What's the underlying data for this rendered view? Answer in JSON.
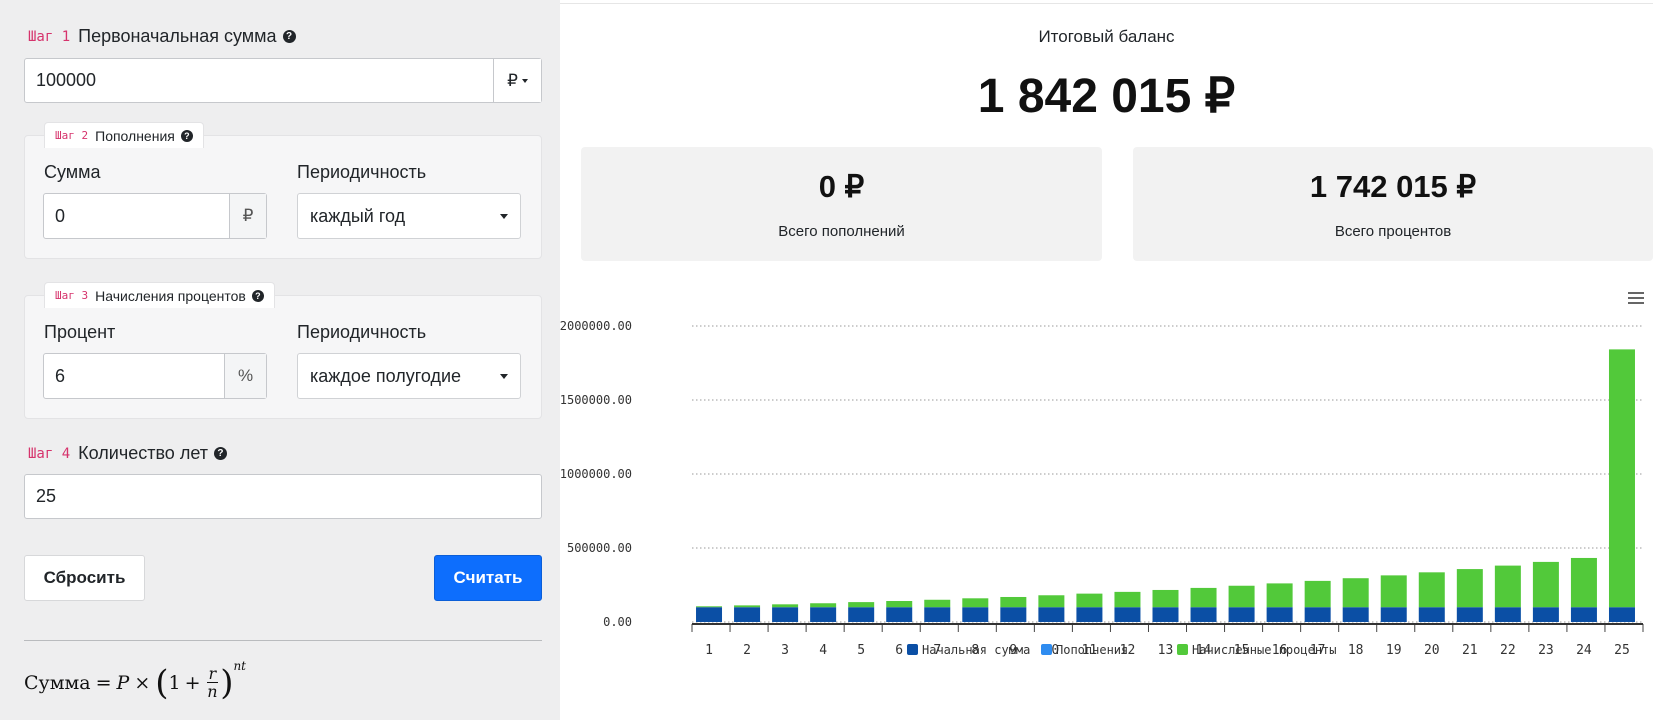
{
  "form": {
    "step1": {
      "tag": "Шаг 1",
      "label": "Первоначальная сумма",
      "value": "100000",
      "currency": "₽"
    },
    "step2": {
      "tag": "Шаг 2",
      "label": "Пополнения",
      "amount_label": "Сумма",
      "amount_value": "0",
      "amount_unit": "₽",
      "period_label": "Периодичность",
      "period_value": "каждый год"
    },
    "step3": {
      "tag": "Шаг 3",
      "label": "Начисления процентов",
      "rate_label": "Процент",
      "rate_value": "6",
      "rate_unit": "%",
      "period_label": "Периодичность",
      "period_value": "каждое полугодие"
    },
    "step4": {
      "tag": "Шаг 4",
      "label": "Количество лет",
      "value": "25"
    },
    "reset_label": "Сбросить",
    "calc_label": "Считать",
    "formula": {
      "lhs": "Сумма",
      "p": "P",
      "one": "1",
      "r": "r",
      "n": "n",
      "exp": "nt"
    }
  },
  "summary": {
    "title": "Итоговый баланс",
    "final_balance": "1 842 015 ₽",
    "deposits_value": "0 ₽",
    "deposits_label": "Всего пополнений",
    "interest_value": "1 742 015 ₽",
    "interest_label": "Всего процентов"
  },
  "colors": {
    "initial": "#0b4fa5",
    "deposits": "#2f8cf0",
    "interest": "#52c93a",
    "primary": "#0d6efd"
  },
  "chart_data": {
    "type": "bar",
    "stacked": true,
    "categories": [
      "1",
      "2",
      "3",
      "4",
      "5",
      "6",
      "7",
      "8",
      "9",
      "10",
      "11",
      "12",
      "13",
      "14",
      "15",
      "16",
      "17",
      "18",
      "19",
      "20",
      "21",
      "22",
      "23",
      "24",
      "25"
    ],
    "series": [
      {
        "name": "Начальная сумма",
        "values": [
          100000,
          100000,
          100000,
          100000,
          100000,
          100000,
          100000,
          100000,
          100000,
          100000,
          100000,
          100000,
          100000,
          100000,
          100000,
          100000,
          100000,
          100000,
          100000,
          100000,
          100000,
          100000,
          100000,
          100000,
          100000
        ]
      },
      {
        "name": "Пополнения",
        "values": [
          0,
          0,
          0,
          0,
          0,
          0,
          0,
          0,
          0,
          0,
          0,
          0,
          0,
          0,
          0,
          0,
          0,
          0,
          0,
          0,
          0,
          0,
          0,
          0,
          0
        ]
      },
      {
        "name": "Начисленные проценты",
        "values": [
          6090,
          12362,
          19405,
          26677,
          34392,
          41852,
          50226,
          60098,
          69042,
          80611,
          91713,
          103553,
          116474,
          130287,
          145010,
          160849,
          177763,
          195818,
          215091,
          235666,
          257619,
          281045,
          306046,
          332713,
          1742015
        ]
      }
    ],
    "ylim": [
      0,
      2000000
    ],
    "yticks": [
      "0.00",
      "500000.00",
      "1000000.00",
      "1500000.00",
      "2000000.00"
    ],
    "grid": true,
    "legend": "bottom"
  }
}
